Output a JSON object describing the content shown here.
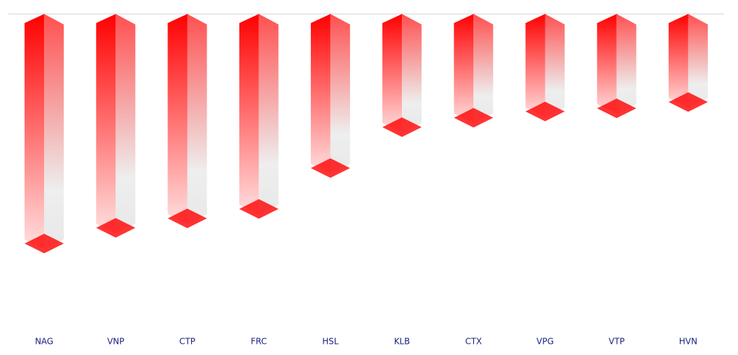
{
  "chart_data": {
    "type": "bar3d",
    "categories": [
      "NAG",
      "VNP",
      "CTP",
      "FRC",
      "HSL",
      "KLB",
      "CTX",
      "VPG",
      "VTP",
      "HVN"
    ],
    "values": [
      -7.3,
      -6.8,
      -6.5,
      -6.2,
      -4.9,
      -3.6,
      -3.3,
      -3.1,
      -3.0,
      -2.8
    ],
    "color": "#ff0000",
    "ylim": [
      -10,
      0
    ]
  }
}
